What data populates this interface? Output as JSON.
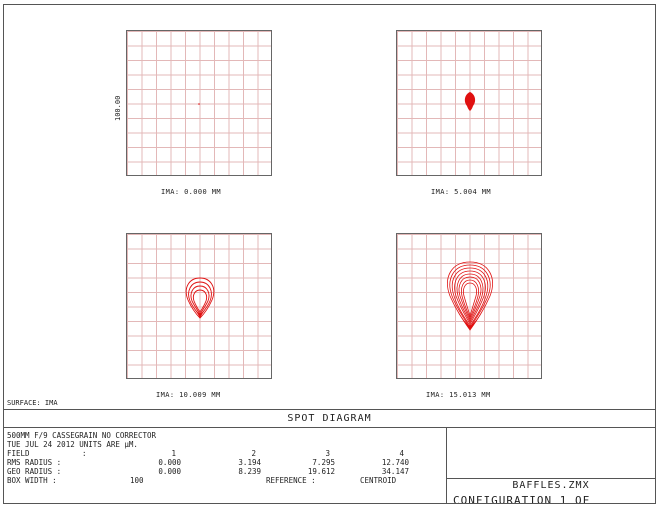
{
  "spot_diagram": {
    "scale_label": "100.00",
    "surface_label": "SURFACE: IMA",
    "fields": [
      {
        "caption": "IMA: 0.000 MM"
      },
      {
        "caption": "IMA: 5.004 MM"
      },
      {
        "caption": "IMA: 10.009 MM"
      },
      {
        "caption": "IMA: 15.013 MM"
      }
    ],
    "spot_color": "#e01010",
    "grid_color": "#e3b8b8"
  },
  "footer": {
    "title": "SPOT DIAGRAM",
    "description": "500MM F/9 CASSEGRAIN NO CORRECTOR",
    "date_units": "TUE JUL 24 2012  UNITS ARE µM.",
    "field_label": "FIELD",
    "rms_label": "RMS RADIUS :",
    "geo_label": "GEO RADIUS :",
    "box_label": "BOX WIDTH  :",
    "colon": ":",
    "field_numbers": [
      "1",
      "2",
      "3",
      "4"
    ],
    "rms_values": [
      "0.000",
      "3.194",
      "7.295",
      "12.740"
    ],
    "geo_values": [
      "0.000",
      "8.239",
      "19.612",
      "34.147"
    ],
    "box_width": "100",
    "reference_label": "REFERENCE  :",
    "reference_value": "CENTROID",
    "file_name": "BAFFLES.ZMX",
    "configuration": "CONFIGURATION 1 OF"
  }
}
